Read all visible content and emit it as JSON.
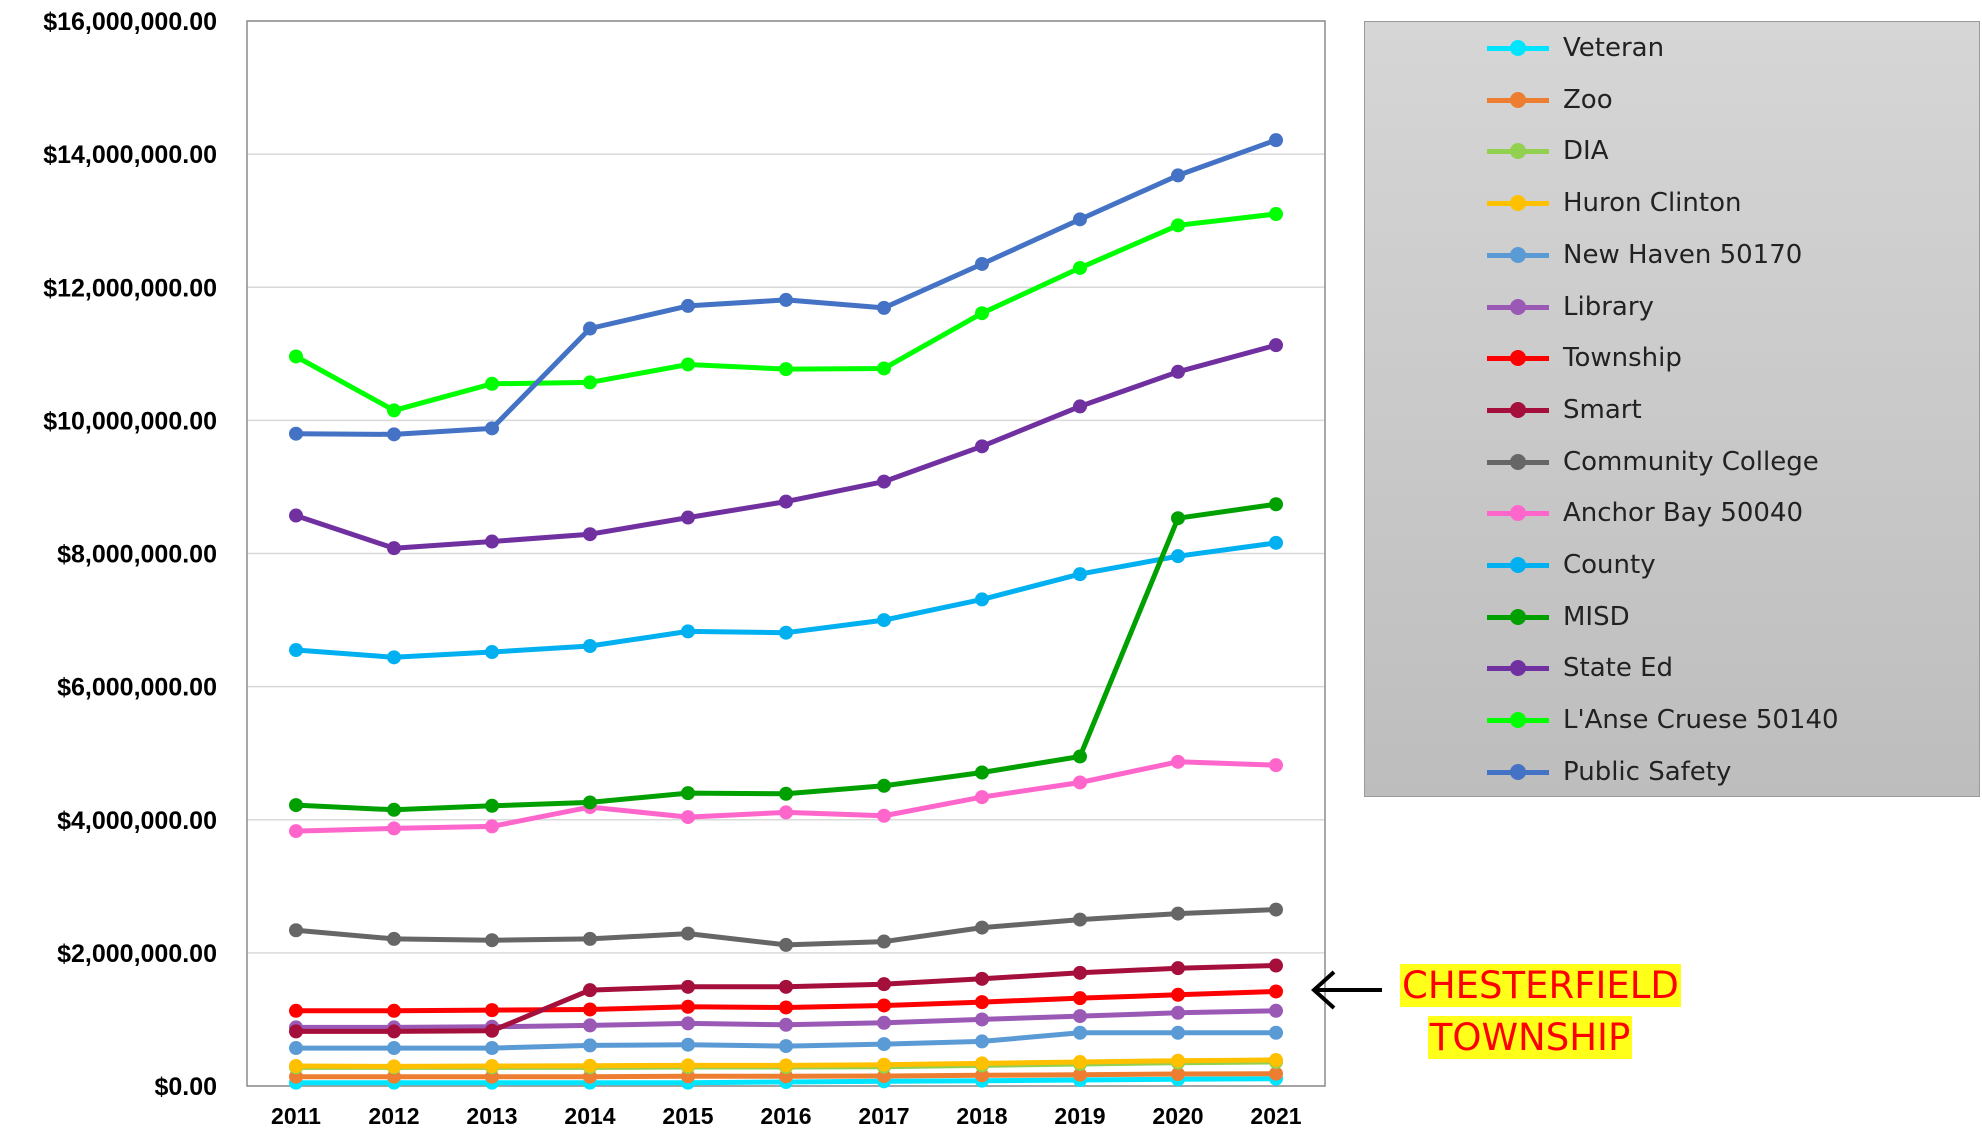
{
  "chart_data": {
    "type": "line",
    "title": "",
    "xlabel": "",
    "ylabel": "",
    "categories": [
      "2011",
      "2012",
      "2013",
      "2014",
      "2015",
      "2016",
      "2017",
      "2018",
      "2019",
      "2020",
      "2021"
    ],
    "ylim": [
      0,
      16000000
    ],
    "yticks": [
      0,
      2000000,
      4000000,
      6000000,
      8000000,
      10000000,
      12000000,
      14000000,
      16000000
    ],
    "ytick_labels": [
      "$0.00",
      "$2,000,000.00",
      "$4,000,000.00",
      "$6,000,000.00",
      "$8,000,000.00",
      "$10,000,000.00",
      "$12,000,000.00",
      "$14,000,000.00",
      "$16,000,000.00"
    ],
    "grid": "horizontal",
    "legend_position": "right",
    "series": [
      {
        "name": "Veteran",
        "color": "#00e5ff",
        "values": [
          50000,
          50000,
          50000,
          50000,
          50000,
          60000,
          70000,
          80000,
          90000,
          100000,
          110000
        ]
      },
      {
        "name": "Zoo",
        "color": "#ed7d31",
        "values": [
          140000,
          140000,
          140000,
          140000,
          145000,
          145000,
          150000,
          160000,
          170000,
          180000,
          185000
        ]
      },
      {
        "name": "DIA",
        "color": "#92d050",
        "values": [
          280000,
          280000,
          280000,
          280000,
          285000,
          285000,
          290000,
          310000,
          330000,
          350000,
          360000
        ]
      },
      {
        "name": "Huron Clinton",
        "color": "#ffc000",
        "values": [
          300000,
          295000,
          300000,
          305000,
          310000,
          310000,
          320000,
          340000,
          360000,
          380000,
          390000
        ]
      },
      {
        "name": "New Haven 50170",
        "color": "#5b9bd5",
        "values": [
          570000,
          570000,
          570000,
          610000,
          620000,
          600000,
          630000,
          670000,
          800000,
          800000,
          800000
        ]
      },
      {
        "name": "Library",
        "color": "#9b59b6",
        "values": [
          880000,
          880000,
          890000,
          910000,
          940000,
          920000,
          950000,
          1000000,
          1050000,
          1100000,
          1130000
        ]
      },
      {
        "name": "Township",
        "color": "#ff0000",
        "values": [
          1130000,
          1130000,
          1140000,
          1150000,
          1190000,
          1180000,
          1210000,
          1260000,
          1320000,
          1370000,
          1420000
        ]
      },
      {
        "name": "Smart",
        "color": "#a50f3c",
        "values": [
          820000,
          820000,
          830000,
          1440000,
          1490000,
          1490000,
          1530000,
          1610000,
          1700000,
          1770000,
          1810000
        ]
      },
      {
        "name": "Community College",
        "color": "#666666",
        "values": [
          2340000,
          2210000,
          2190000,
          2210000,
          2290000,
          2120000,
          2170000,
          2380000,
          2500000,
          2590000,
          2650000
        ]
      },
      {
        "name": "Anchor Bay 50040",
        "color": "#ff66cc",
        "values": [
          3830000,
          3870000,
          3900000,
          4190000,
          4040000,
          4110000,
          4060000,
          4340000,
          4560000,
          4870000,
          4820000
        ]
      },
      {
        "name": "County",
        "color": "#00b0f0",
        "values": [
          6550000,
          6440000,
          6520000,
          6610000,
          6830000,
          6810000,
          7000000,
          7310000,
          7690000,
          7960000,
          8160000
        ]
      },
      {
        "name": "MISD",
        "color": "#00a000",
        "values": [
          4220000,
          4150000,
          4210000,
          4260000,
          4400000,
          4390000,
          4510000,
          4710000,
          4950000,
          8530000,
          8740000
        ]
      },
      {
        "name": "State Ed",
        "color": "#7030a0",
        "values": [
          8570000,
          8080000,
          8180000,
          8290000,
          8540000,
          8780000,
          9080000,
          9610000,
          10210000,
          10730000,
          11130000
        ]
      },
      {
        "name": "L'Anse Cruese 50140",
        "color": "#00ff00",
        "values": [
          10960000,
          10150000,
          10550000,
          10570000,
          10840000,
          10770000,
          10780000,
          11610000,
          12290000,
          12930000,
          13100000
        ]
      },
      {
        "name": "Public Safety",
        "color": "#4472c4",
        "values": [
          9800000,
          9790000,
          9880000,
          11380000,
          11720000,
          11810000,
          11690000,
          12350000,
          13020000,
          13680000,
          14210000
        ]
      }
    ]
  },
  "annotation": {
    "line1": "CHESTERFIELD",
    "line2": "TOWNSHIP",
    "arrow": "←"
  }
}
